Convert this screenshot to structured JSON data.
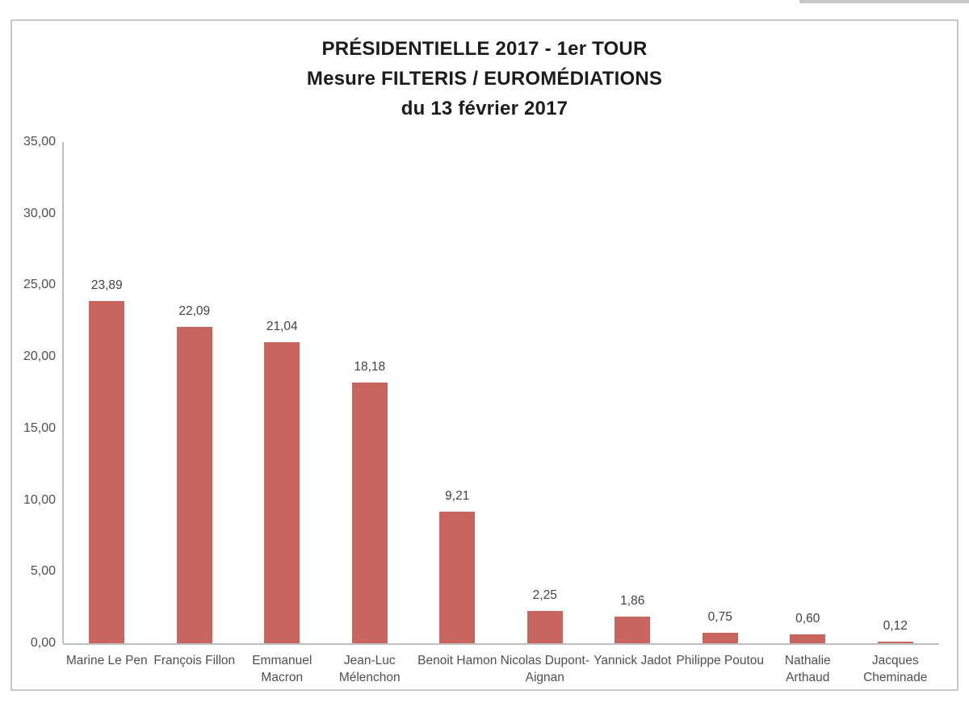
{
  "page": {
    "top_right_strip_color": "#c9c9c9",
    "frame_border_color": "#c9c9c9",
    "background_color": "#ffffff"
  },
  "chart_data": {
    "type": "bar",
    "title_lines": [
      "PRÉSIDENTIELLE 2017 - 1er TOUR",
      "Mesure FILTERIS / EUROMÉDIATIONS",
      "du 13 février 2017"
    ],
    "categories": [
      "Marine Le Pen",
      "François Fillon",
      "Emmanuel Macron",
      "Jean-Luc Mélenchon",
      "Benoit Hamon",
      "Nicolas Dupont-Aignan",
      "Yannick Jadot",
      "Philippe Poutou",
      "Nathalie Arthaud",
      "Jacques Cheminade"
    ],
    "values": [
      23.89,
      22.09,
      21.04,
      18.18,
      9.21,
      2.25,
      1.86,
      0.75,
      0.6,
      0.12
    ],
    "value_labels": [
      "23,89",
      "22,09",
      "21,04",
      "18,18",
      "9,21",
      "2,25",
      "1,86",
      "0,75",
      "0,60",
      "0,12"
    ],
    "xlabel": "",
    "ylabel": "",
    "ylim": [
      0,
      35
    ],
    "y_tick_step": 5,
    "y_tick_labels": [
      "35,00",
      "30,00",
      "25,00",
      "20,00",
      "15,00",
      "10,00",
      "5,00",
      "0,00"
    ],
    "grid": false,
    "legend": false,
    "bar_color": "#c8655f",
    "axis_color": "#bfbfbf",
    "tick_label_color": "#4f4f4f",
    "value_label_color": "#424242",
    "title_color": "#1c1c1c"
  }
}
